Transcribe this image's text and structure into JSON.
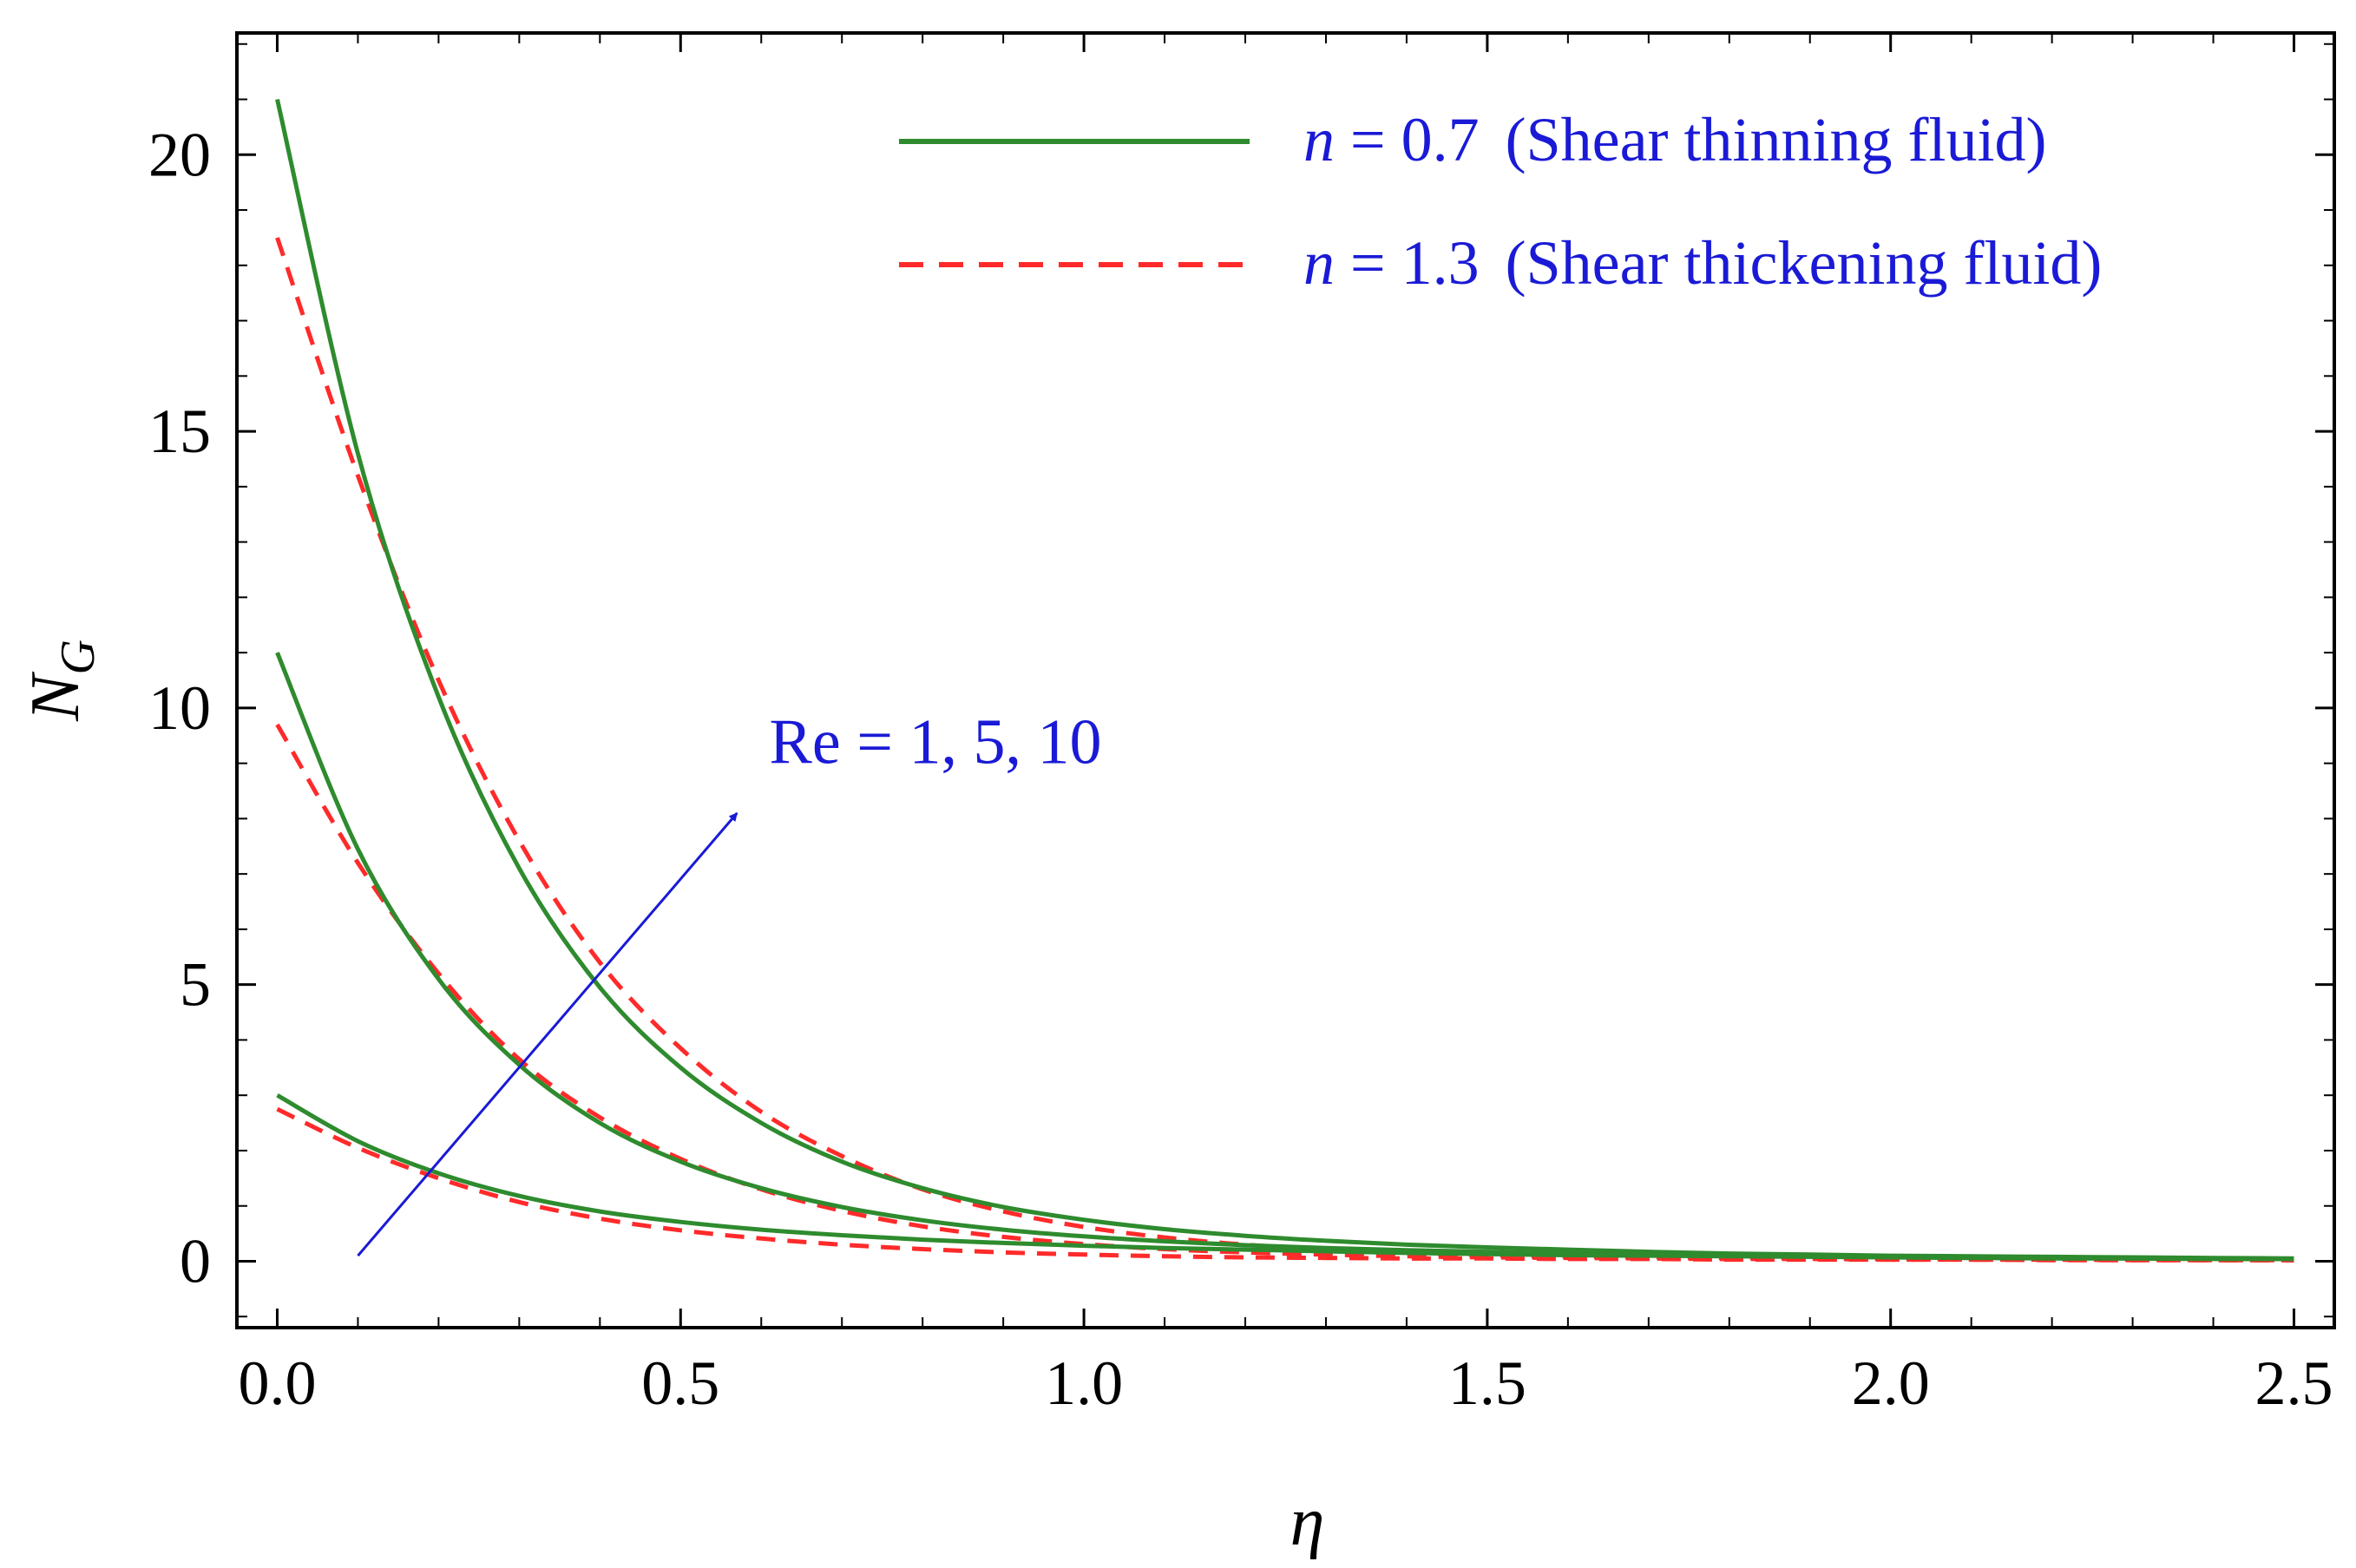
{
  "chart_data": {
    "type": "line",
    "title": "",
    "xlabel": "η",
    "ylabel_main": "N",
    "ylabel_sub": "G",
    "xlim": [
      -0.05,
      2.55
    ],
    "ylim": [
      -1.2,
      22.2
    ],
    "x_ticks": [
      0.0,
      0.5,
      1.0,
      1.5,
      2.0,
      2.5
    ],
    "x_tick_labels": [
      "0.0",
      "0.5",
      "1.0",
      "1.5",
      "2.0",
      "2.5"
    ],
    "y_ticks": [
      0,
      5,
      10,
      15,
      20
    ],
    "y_tick_labels": [
      "0",
      "5",
      "10",
      "15",
      "20"
    ],
    "grid": false,
    "legend_position": "top-right",
    "legend": [
      {
        "prefix": "n",
        "value": " = 0.7",
        "desc": "(Shear thinning fluid)",
        "color": "#2e8b2e",
        "style": "solid"
      },
      {
        "prefix": "n",
        "value": " = 1.3",
        "desc": "(Shear thickening fluid)",
        "color": "#ff2a2a",
        "style": "dashed"
      }
    ],
    "annotation": {
      "text": "Re = 1, 5, 10",
      "color": "#1a1ad6",
      "arrow_from": [
        0.1,
        0.1
      ],
      "arrow_to": [
        0.57,
        8.1
      ]
    },
    "x": [
      0.0,
      0.1,
      0.2,
      0.3,
      0.4,
      0.5,
      0.6,
      0.7,
      0.8,
      0.9,
      1.0,
      1.1,
      1.2,
      1.3,
      1.4,
      1.5,
      1.6,
      1.7,
      1.8,
      1.9,
      2.0,
      2.1,
      2.2,
      2.3,
      2.4,
      2.5
    ],
    "series": [
      {
        "name": "n = 0.7, Re = 1",
        "n": 0.7,
        "Re": 1,
        "style": "solid",
        "color": "#2e8b2e",
        "values": [
          3.0,
          2.17,
          1.59,
          1.18,
          0.9,
          0.71,
          0.57,
          0.47,
          0.39,
          0.33,
          0.28,
          0.24,
          0.21,
          0.18,
          0.15,
          0.13,
          0.11,
          0.1,
          0.09,
          0.08,
          0.07,
          0.06,
          0.05,
          0.05,
          0.04,
          0.04
        ]
      },
      {
        "name": "n = 0.7, Re = 5",
        "n": 0.7,
        "Re": 5,
        "style": "solid",
        "color": "#2e8b2e",
        "values": [
          11.0,
          7.45,
          5.1,
          3.55,
          2.5,
          1.8,
          1.32,
          0.98,
          0.74,
          0.57,
          0.45,
          0.36,
          0.29,
          0.24,
          0.2,
          0.17,
          0.14,
          0.12,
          0.1,
          0.09,
          0.08,
          0.07,
          0.06,
          0.05,
          0.05,
          0.04
        ]
      },
      {
        "name": "n = 0.7, Re = 10",
        "n": 0.7,
        "Re": 10,
        "style": "solid",
        "color": "#2e8b2e",
        "values": [
          21.0,
          14.6,
          10.2,
          7.1,
          4.95,
          3.5,
          2.5,
          1.8,
          1.32,
          0.98,
          0.75,
          0.58,
          0.46,
          0.37,
          0.3,
          0.25,
          0.21,
          0.17,
          0.14,
          0.12,
          0.1,
          0.09,
          0.08,
          0.07,
          0.06,
          0.05
        ]
      },
      {
        "name": "n = 1.3, Re = 1",
        "n": 1.3,
        "Re": 1,
        "style": "dashed",
        "color": "#ff2a2a",
        "values": [
          2.75,
          2.05,
          1.5,
          1.07,
          0.77,
          0.56,
          0.41,
          0.3,
          0.22,
          0.16,
          0.12,
          0.09,
          0.07,
          0.06,
          0.05,
          0.05,
          0.04,
          0.04,
          0.03,
          0.03,
          0.03,
          0.03,
          0.02,
          0.02,
          0.02,
          0.02
        ]
      },
      {
        "name": "n = 1.3, Re = 5",
        "n": 1.3,
        "Re": 5,
        "style": "dashed",
        "color": "#ff2a2a",
        "values": [
          9.7,
          7.2,
          5.2,
          3.65,
          2.6,
          1.85,
          1.3,
          0.91,
          0.63,
          0.44,
          0.31,
          0.22,
          0.16,
          0.12,
          0.09,
          0.07,
          0.06,
          0.05,
          0.04,
          0.04,
          0.03,
          0.03,
          0.03,
          0.02,
          0.02,
          0.02
        ]
      },
      {
        "name": "n = 1.3, Re = 10",
        "n": 1.3,
        "Re": 10,
        "style": "dashed",
        "color": "#ff2a2a",
        "values": [
          18.5,
          14.2,
          10.5,
          7.6,
          5.4,
          3.85,
          2.7,
          1.9,
          1.3,
          0.9,
          0.62,
          0.43,
          0.3,
          0.21,
          0.15,
          0.11,
          0.08,
          0.07,
          0.06,
          0.05,
          0.04,
          0.03,
          0.03,
          0.03,
          0.02,
          0.02
        ]
      }
    ]
  }
}
